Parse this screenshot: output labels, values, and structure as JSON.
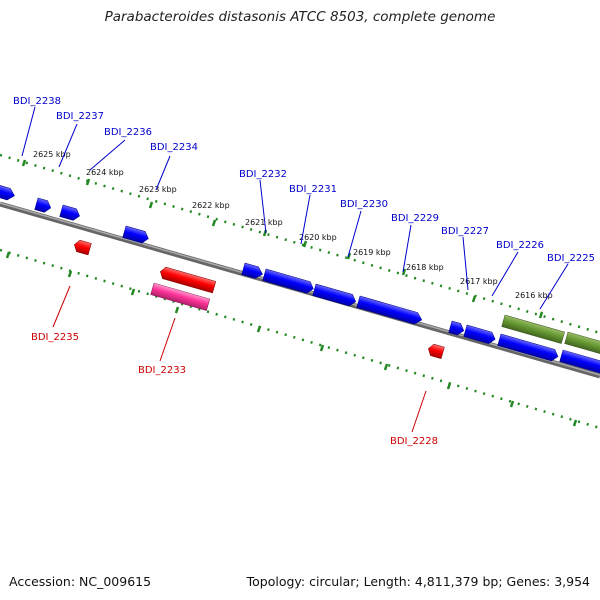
{
  "title": "Parabacteroides distasonis ATCC 8503, complete genome",
  "footer": {
    "accession": "Accession: NC_009615",
    "stats": "Topology: circular; Length: 4,811,379 bp; Genes: 3,954"
  },
  "colors": {
    "forward_gene": "#0000ff",
    "reverse_gene": "#ff0000",
    "rna_gene": "#ff3399",
    "other_gene": "#669933",
    "forward_label": "#0000cc",
    "reverse_label": "#cc0000",
    "backbone": "#777777",
    "ticks": "#228822"
  },
  "scale_ticks": [
    "2625 kbp",
    "2624 kbp",
    "2623 kbp",
    "2622 kbp",
    "2621 kbp",
    "2620 kbp",
    "2619 kbp",
    "2618 kbp",
    "2617 kbp",
    "2616 kbp"
  ],
  "forward_genes": [
    "BDI_2238",
    "BDI_2237",
    "BDI_2236",
    "BDI_2234",
    "BDI_2232",
    "BDI_2231",
    "BDI_2230",
    "BDI_2229",
    "BDI_2227",
    "BDI_2226",
    "BDI_2225"
  ],
  "reverse_genes": [
    "BDI_2235",
    "BDI_2233",
    "BDI_2228"
  ]
}
